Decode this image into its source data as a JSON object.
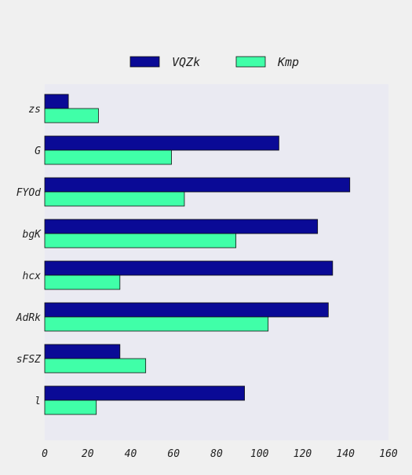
{
  "chart_data": {
    "type": "bar",
    "orientation": "horizontal",
    "categories": [
      "zs",
      "G",
      "FYOd",
      "bgK",
      "hcx",
      "AdRk",
      "sFSZ",
      "l"
    ],
    "series": [
      {
        "name": "VQZk",
        "color": "#0a0a96",
        "values": [
          11,
          109,
          142,
          127,
          134,
          132,
          35,
          93
        ]
      },
      {
        "name": "Kmp",
        "color": "#40ffa8",
        "values": [
          25,
          59,
          65,
          89,
          35,
          104,
          47,
          24
        ]
      }
    ],
    "title": "",
    "xlabel": "",
    "ylabel": "",
    "xlim": [
      0,
      160
    ],
    "x_ticks": [
      "0",
      "20",
      "40",
      "60",
      "80",
      "100",
      "120",
      "140",
      "160"
    ],
    "grid": false,
    "legend_position": "top-center",
    "plot_background": "#eaeaf2",
    "page_background": "#f0f0f0"
  }
}
